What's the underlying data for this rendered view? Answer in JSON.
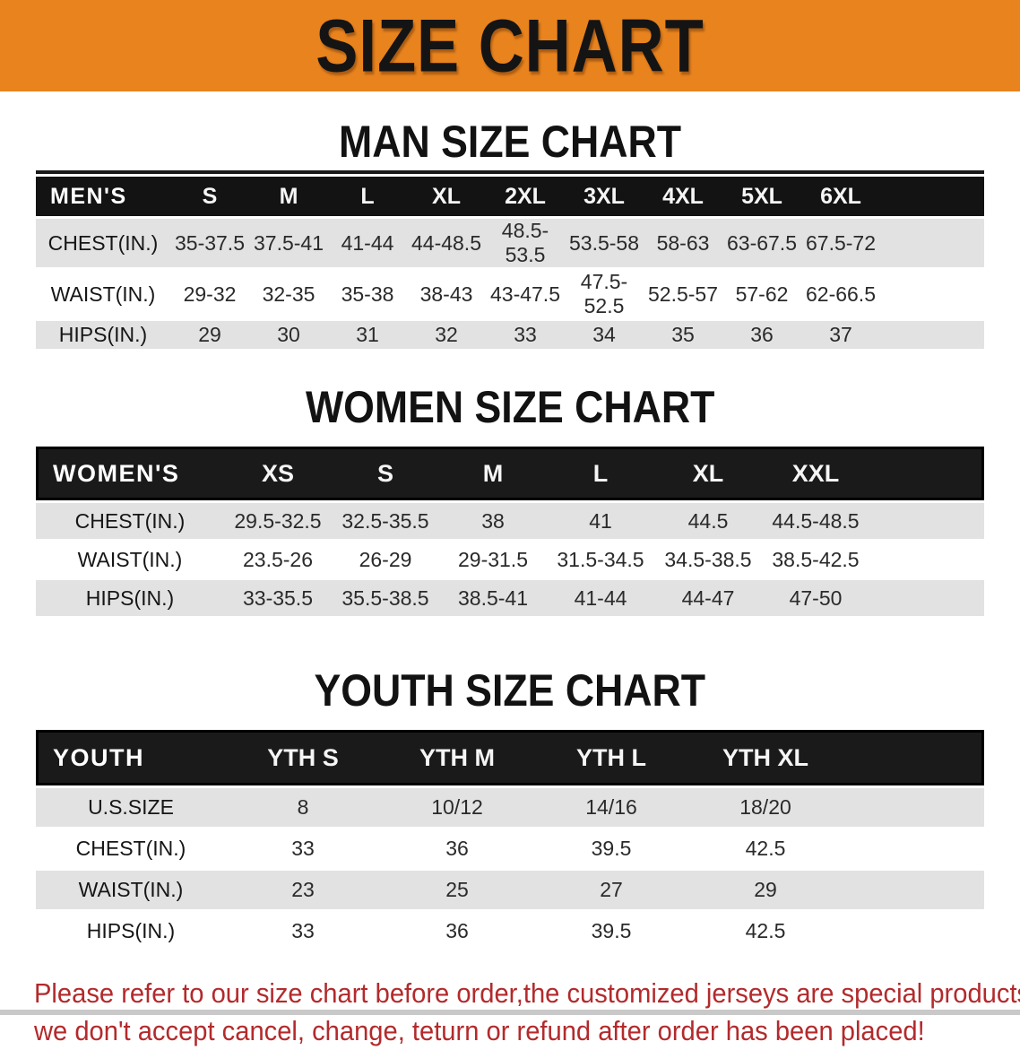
{
  "banner": {
    "title": "SIZE CHART"
  },
  "chart_data": [
    {
      "type": "table",
      "title": "MAN SIZE CHART",
      "corner_label": "MEN'S",
      "columns": [
        "S",
        "M",
        "L",
        "XL",
        "2XL",
        "3XL",
        "4XL",
        "5XL",
        "6XL"
      ],
      "rows": [
        {
          "label": "CHEST(IN.)",
          "values": [
            "35-37.5",
            "37.5-41",
            "41-44",
            "44-48.5",
            "48.5-53.5",
            "53.5-58",
            "58-63",
            "63-67.5",
            "67.5-72"
          ]
        },
        {
          "label": "WAIST(IN.)",
          "values": [
            "29-32",
            "32-35",
            "35-38",
            "38-43",
            "43-47.5",
            "47.5-52.5",
            "52.5-57",
            "57-62",
            "62-66.5"
          ]
        },
        {
          "label": "HIPS(IN.)",
          "values": [
            "29",
            "30",
            "31",
            "32",
            "33",
            "34",
            "35",
            "36",
            "37"
          ]
        }
      ]
    },
    {
      "type": "table",
      "title": "WOMEN SIZE CHART",
      "corner_label": "WOMEN'S",
      "columns": [
        "XS",
        "S",
        "M",
        "L",
        "XL",
        "XXL"
      ],
      "rows": [
        {
          "label": "CHEST(IN.)",
          "values": [
            "29.5-32.5",
            "32.5-35.5",
            "38",
            "41",
            "44.5",
            "44.5-48.5"
          ]
        },
        {
          "label": "WAIST(IN.)",
          "values": [
            "23.5-26",
            "26-29",
            "29-31.5",
            "31.5-34.5",
            "34.5-38.5",
            "38.5-42.5"
          ]
        },
        {
          "label": "HIPS(IN.)",
          "values": [
            "33-35.5",
            "35.5-38.5",
            "38.5-41",
            "41-44",
            "44-47",
            "47-50"
          ]
        }
      ]
    },
    {
      "type": "table",
      "title": "YOUTH SIZE CHART",
      "corner_label": "YOUTH",
      "columns": [
        "YTH S",
        "YTH M",
        "YTH L",
        "YTH XL"
      ],
      "rows": [
        {
          "label": "U.S.SIZE",
          "values": [
            "8",
            "10/12",
            "14/16",
            "18/20"
          ]
        },
        {
          "label": "CHEST(IN.)",
          "values": [
            "33",
            "36",
            "39.5",
            "42.5"
          ]
        },
        {
          "label": "WAIST(IN.)",
          "values": [
            "23",
            "25",
            "27",
            "29"
          ]
        },
        {
          "label": "HIPS(IN.)",
          "values": [
            "33",
            "36",
            "39.5",
            "42.5"
          ]
        }
      ]
    }
  ],
  "disclaimer": {
    "line1": "Please refer to our size chart before order,the customized jerseys are special products,",
    "line2": "we don't accept cancel, change, teturn or refund after order has been placed!"
  },
  "colors": {
    "banner_orange": "#E8831E",
    "header_bar_black": "#131313",
    "row_stripe_gray": "#E2E2E2",
    "row_stripe_white": "#FFFFFF",
    "disclaimer_red": "#B32A2C"
  }
}
